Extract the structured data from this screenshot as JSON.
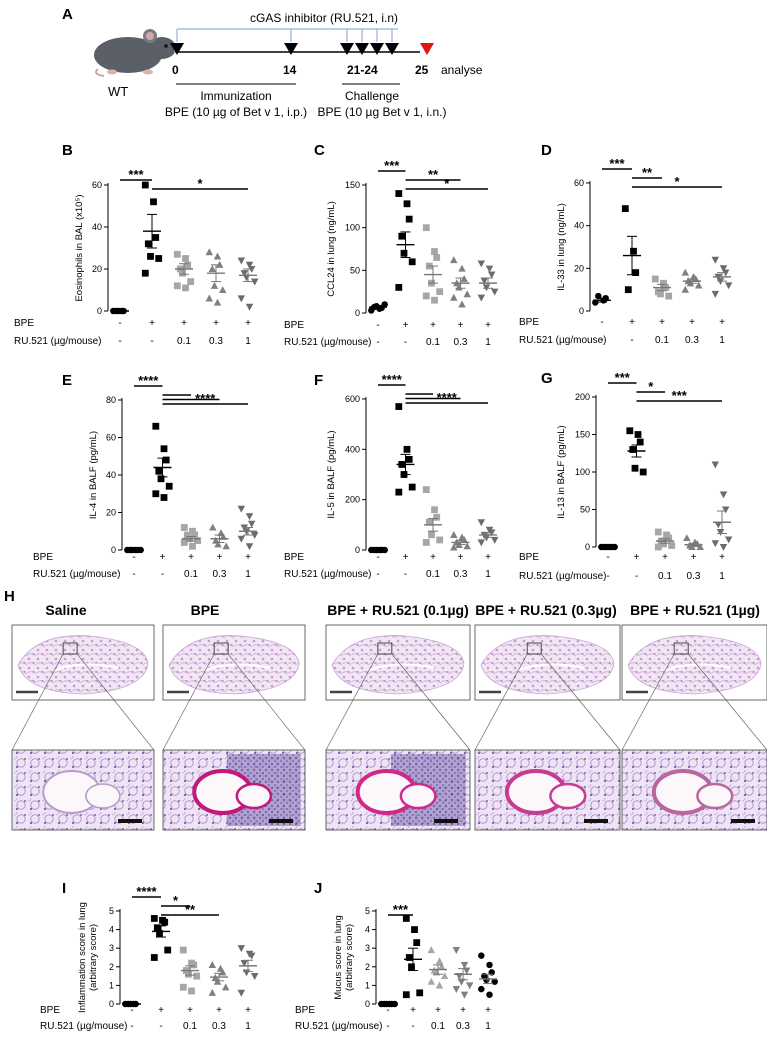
{
  "figure": {
    "panel_a": {
      "letter": "A",
      "inhibitor_label": "cGAS inhibitor (RU.521, i.n)",
      "mouse_label": "WT",
      "days": [
        "0",
        "14",
        "21-24",
        "25"
      ],
      "analyse_label": "analyse",
      "immunization_title": "Immunization",
      "immunization_detail": "BPE (10 µg of Bet v 1, i.p.)",
      "challenge_title": "Challenge",
      "challenge_detail": "BPE (10 µg Bet v 1, i.n.)"
    },
    "panel_h": {
      "letter": "H",
      "titles": [
        "Saline",
        "BPE",
        "BPE + RU.521 (0.1µg)",
        "BPE + RU.521 (0.3µg)",
        "BPE + RU.521 (1µg)"
      ]
    },
    "groups": {
      "bpe_label": "BPE",
      "ru_label": "RU.521 (µg/mouse)",
      "bpe_values": [
        "-",
        "+",
        "+",
        "+",
        "+"
      ],
      "ru_values": [
        "-",
        "-",
        "0.1",
        "0.3",
        "1"
      ],
      "group_colors": [
        "#000000",
        "#000000",
        "#a6a6a6",
        "#808080",
        "#6b6b6b"
      ]
    }
  },
  "chart_data": [
    {
      "panel": "B",
      "type": "scatter",
      "ylabel": "Eosinophils in BAL (x10⁵)",
      "ylim": [
        0,
        60
      ],
      "yticks": [
        "0",
        "20",
        "40",
        "60"
      ],
      "markers": [
        "circle",
        "square",
        "square",
        "triangle",
        "triangle-down"
      ],
      "groups": [
        [
          0,
          0,
          0,
          0,
          0
        ],
        [
          60,
          52,
          35,
          32,
          26,
          25,
          18
        ],
        [
          27,
          25,
          22,
          20,
          18,
          14,
          12,
          11
        ],
        [
          28,
          26,
          22,
          20,
          12,
          10,
          6,
          4
        ],
        [
          24,
          22,
          20,
          18,
          16,
          14,
          6,
          2
        ]
      ],
      "means": [
        0,
        38,
        20,
        18,
        17
      ],
      "sems": [
        0,
        8,
        2.5,
        4,
        3
      ],
      "significance": [
        {
          "from": 0,
          "to": 1,
          "label": "***",
          "level": 1
        },
        {
          "from": 1,
          "to": 4,
          "label": "*",
          "level": 0
        }
      ]
    },
    {
      "panel": "C",
      "type": "scatter",
      "ylabel": "CCL24 in lung (ng/mL)",
      "ylim": [
        0,
        150
      ],
      "yticks": [
        "0",
        "50",
        "100",
        "150"
      ],
      "markers": [
        "circle",
        "square",
        "square",
        "triangle",
        "triangle-down"
      ],
      "groups": [
        [
          3,
          5,
          6,
          7,
          8,
          10
        ],
        [
          140,
          128,
          110,
          90,
          70,
          60,
          30
        ],
        [
          100,
          72,
          65,
          55,
          35,
          25,
          20,
          15
        ],
        [
          62,
          52,
          40,
          35,
          30,
          22,
          18,
          10
        ],
        [
          58,
          52,
          45,
          38,
          30,
          25,
          18
        ]
      ],
      "means": [
        7,
        80,
        45,
        35,
        35
      ],
      "sems": [
        1.2,
        15,
        10,
        6,
        6
      ],
      "significance": [
        {
          "from": 0,
          "to": 1,
          "label": "***",
          "level": 2
        },
        {
          "from": 1,
          "to": 3,
          "label": "**",
          "level": 1
        },
        {
          "from": 1,
          "to": 4,
          "label": "*",
          "level": 0
        }
      ]
    },
    {
      "panel": "D",
      "type": "scatter",
      "ylabel": "IL-33 in lung (ng/mL)",
      "ylim": [
        0,
        60
      ],
      "yticks": [
        "0",
        "20",
        "40",
        "60"
      ],
      "markers": [
        "circle",
        "square",
        "square",
        "triangle",
        "triangle-down"
      ],
      "groups": [
        [
          4,
          5,
          6,
          7
        ],
        [
          48,
          28,
          18,
          10
        ],
        [
          15,
          13,
          11,
          9,
          8,
          7
        ],
        [
          18,
          16,
          15,
          14,
          13,
          12,
          10
        ],
        [
          24,
          20,
          18,
          16,
          14,
          12,
          8
        ]
      ],
      "means": [
        5,
        26,
        11,
        14,
        16
      ],
      "sems": [
        0.8,
        9,
        1.5,
        1,
        2
      ],
      "significance": [
        {
          "from": 0,
          "to": 1,
          "label": "***",
          "level": 2
        },
        {
          "from": 1,
          "to": 2,
          "label": "**",
          "level": 1
        },
        {
          "from": 1,
          "to": 4,
          "label": "*",
          "level": 0
        }
      ]
    },
    {
      "panel": "E",
      "type": "scatter",
      "ylabel": "IL-4 in BALF (pg/mL)",
      "ylim": [
        0,
        80
      ],
      "yticks": [
        "0",
        "20",
        "40",
        "60",
        "80"
      ],
      "markers": [
        "circle",
        "square",
        "square",
        "triangle",
        "triangle-down"
      ],
      "groups": [
        [
          0,
          0,
          0,
          0,
          0,
          0
        ],
        [
          66,
          54,
          48,
          42,
          38,
          34,
          30,
          28
        ],
        [
          12,
          10,
          8,
          8,
          6,
          5,
          4,
          2
        ],
        [
          12,
          9,
          7,
          5,
          3,
          2
        ],
        [
          22,
          18,
          14,
          12,
          10,
          8,
          6,
          2
        ]
      ],
      "means": [
        0,
        44,
        6,
        6,
        10
      ],
      "sems": [
        0,
        5,
        1.2,
        2,
        2
      ],
      "significance": [
        {
          "from": 0,
          "to": 1,
          "label": "****",
          "level": 2
        },
        {
          "from": 1,
          "to": 2,
          "label": "",
          "level": 1
        },
        {
          "from": 1,
          "to": 3,
          "label": "",
          "level": 0.5
        },
        {
          "from": 1,
          "to": 4,
          "label": "****",
          "level": 0
        }
      ]
    },
    {
      "panel": "F",
      "type": "scatter",
      "ylabel": "IL-5 in BALF (pg/mL)",
      "ylim": [
        0,
        600
      ],
      "yticks": [
        "0",
        "200",
        "400",
        "600"
      ],
      "markers": [
        "circle",
        "square",
        "square",
        "triangle",
        "triangle-down"
      ],
      "groups": [
        [
          0,
          0,
          0,
          0,
          0,
          0
        ],
        [
          570,
          400,
          360,
          340,
          300,
          250,
          230
        ],
        [
          240,
          160,
          130,
          110,
          60,
          40,
          30
        ],
        [
          60,
          50,
          40,
          30,
          20,
          15,
          10
        ],
        [
          110,
          80,
          70,
          60,
          50,
          40,
          30
        ]
      ],
      "means": [
        0,
        340,
        100,
        30,
        60
      ],
      "sems": [
        0,
        40,
        25,
        8,
        10
      ],
      "significance": [
        {
          "from": 0,
          "to": 1,
          "label": "****",
          "level": 2
        },
        {
          "from": 1,
          "to": 2,
          "label": "",
          "level": 1
        },
        {
          "from": 1,
          "to": 3,
          "label": "",
          "level": 0.5
        },
        {
          "from": 1,
          "to": 4,
          "label": "****",
          "level": 0
        }
      ]
    },
    {
      "panel": "G",
      "type": "scatter",
      "ylabel": "IL-13 in BALF (pg/mL)",
      "ylim": [
        0,
        200
      ],
      "yticks": [
        "0",
        "50",
        "100",
        "150",
        "200"
      ],
      "markers": [
        "circle",
        "square",
        "square",
        "triangle",
        "triangle-down"
      ],
      "groups": [
        [
          0,
          0,
          0,
          0,
          0,
          0
        ],
        [
          155,
          150,
          140,
          130,
          105,
          100
        ],
        [
          20,
          16,
          12,
          8,
          4,
          2,
          0
        ],
        [
          12,
          6,
          4,
          2,
          0,
          0
        ],
        [
          110,
          70,
          50,
          30,
          20,
          10,
          5,
          0
        ]
      ],
      "means": [
        0,
        128,
        8,
        3,
        33
      ],
      "sems": [
        0,
        8,
        3,
        2,
        15
      ],
      "significance": [
        {
          "from": 0,
          "to": 1,
          "label": "***",
          "level": 2
        },
        {
          "from": 1,
          "to": 2,
          "label": "*",
          "level": 1
        },
        {
          "from": 1,
          "to": 4,
          "label": "***",
          "level": 0
        }
      ]
    },
    {
      "panel": "I",
      "type": "scatter",
      "ylabel": "Inflammation score in lung (arbitrary score)",
      "ylim": [
        0,
        5
      ],
      "yticks": [
        "0",
        "1",
        "2",
        "3",
        "4",
        "5"
      ],
      "markers": [
        "circle",
        "square",
        "square",
        "triangle",
        "triangle-down"
      ],
      "groups": [
        [
          0,
          0,
          0,
          0,
          0
        ],
        [
          4.6,
          4.5,
          4.4,
          4.1,
          3.8,
          2.9,
          2.5
        ],
        [
          2.9,
          2.2,
          2.1,
          1.8,
          1.6,
          1.5,
          0.9,
          0.7
        ],
        [
          2.1,
          1.9,
          1.7,
          1.4,
          1.2,
          0.9,
          0.6
        ],
        [
          3.0,
          2.7,
          2.6,
          2.2,
          1.7,
          1.5,
          0.6
        ]
      ],
      "means": [
        0,
        3.9,
        1.8,
        1.45,
        2.05
      ],
      "sems": [
        0,
        0.3,
        0.25,
        0.2,
        0.3
      ],
      "significance": [
        {
          "from": 0,
          "to": 1,
          "label": "****",
          "level": 2
        },
        {
          "from": 1,
          "to": 2,
          "label": "*",
          "level": 1
        },
        {
          "from": 1,
          "to": 3,
          "label": "**",
          "level": 0
        }
      ]
    },
    {
      "panel": "J",
      "type": "scatter",
      "ylabel": "Mucus score in lung (arbitrary score)",
      "ylim": [
        0,
        5
      ],
      "yticks": [
        "0",
        "1",
        "2",
        "3",
        "4",
        "5"
      ],
      "markers": [
        "circle",
        "square",
        "triangle",
        "triangle-down",
        "circle"
      ],
      "marker_colors": [
        "#000000",
        "#000000",
        "#a6a6a6",
        "#808080",
        "#000000"
      ],
      "groups": [
        [
          0,
          0,
          0,
          0,
          0,
          0
        ],
        [
          4.6,
          4.0,
          3.3,
          2.5,
          2.0,
          0.6,
          0.5
        ],
        [
          2.9,
          2.3,
          2.0,
          1.8,
          1.7,
          1.5,
          1.2,
          1.0
        ],
        [
          2.9,
          2.1,
          1.8,
          1.5,
          1.2,
          1.0,
          0.8,
          0.5
        ],
        [
          2.6,
          2.1,
          1.7,
          1.5,
          1.3,
          1.2,
          0.8,
          0.5
        ]
      ],
      "means": [
        0,
        2.4,
        1.85,
        1.6,
        1.35
      ],
      "sems": [
        0,
        0.6,
        0.25,
        0.3,
        0.25
      ],
      "significance": [
        {
          "from": 0,
          "to": 1,
          "label": "***",
          "level": 0
        }
      ]
    }
  ]
}
